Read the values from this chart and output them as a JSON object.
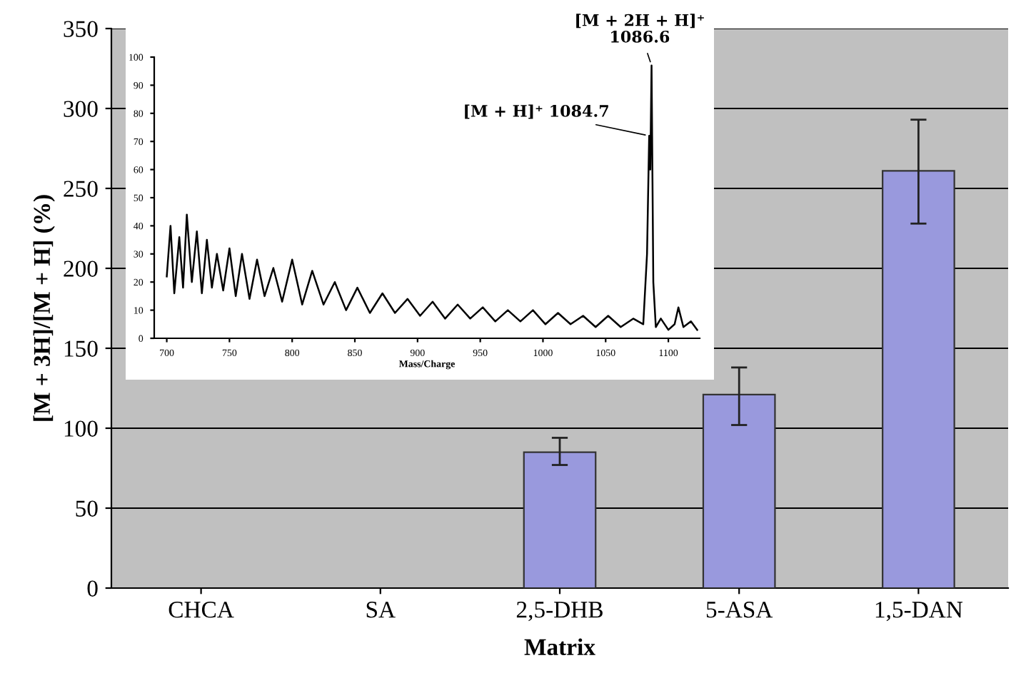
{
  "chart_data": [
    {
      "type": "bar",
      "xlabel": "Matrix",
      "ylabel": "[M + 3H]/[M + H] (%)",
      "categories": [
        "CHCA",
        "SA",
        "2,5-DHB",
        "5-ASA",
        "1,5-DAN"
      ],
      "values": [
        0,
        0,
        85,
        121,
        261
      ],
      "errors": [
        null,
        null,
        [
          77,
          94
        ],
        [
          102,
          138
        ],
        [
          228,
          293
        ]
      ],
      "color": "#9999dd",
      "ylim": [
        0,
        350
      ],
      "yticks": [
        0,
        50,
        100,
        150,
        200,
        250,
        300,
        350
      ],
      "grid": "y",
      "legend": false
    },
    {
      "type": "line",
      "xlabel": "Mass/Charge",
      "x": [
        700,
        703,
        706,
        710,
        713,
        716,
        720,
        724,
        728,
        732,
        736,
        740,
        745,
        750,
        755,
        760,
        766,
        772,
        778,
        785,
        792,
        800,
        808,
        816,
        825,
        834,
        843,
        852,
        862,
        872,
        882,
        892,
        902,
        912,
        922,
        932,
        942,
        952,
        962,
        972,
        982,
        992,
        1002,
        1012,
        1022,
        1032,
        1042,
        1052,
        1062,
        1072,
        1080,
        1083,
        1084.7,
        1085.6,
        1086.6,
        1088,
        1090,
        1094,
        1100,
        1105,
        1108,
        1112,
        1118,
        1123
      ],
      "series": [
        {
          "color": "#000000",
          "values": [
            22,
            40,
            16,
            36,
            18,
            44,
            20,
            38,
            16,
            35,
            18,
            30,
            17,
            32,
            15,
            30,
            14,
            28,
            15,
            25,
            13,
            28,
            12,
            24,
            12,
            20,
            10,
            18,
            9,
            16,
            9,
            14,
            8,
            13,
            7,
            12,
            7,
            11,
            6,
            10,
            6,
            10,
            5,
            9,
            5,
            8,
            4,
            8,
            4,
            7,
            5,
            30,
            72,
            60,
            97,
            20,
            4,
            7,
            3,
            5,
            11,
            4,
            6,
            3
          ]
        }
      ],
      "xlim": [
        690,
        1125
      ],
      "ylim": [
        0,
        100
      ],
      "xticks": [
        700,
        750,
        800,
        850,
        900,
        950,
        1000,
        1050,
        1100
      ],
      "yticks": [
        0,
        10,
        20,
        30,
        40,
        50,
        60,
        70,
        80,
        90,
        100
      ],
      "annotations": [
        {
          "text": "[M + 2H + H]⁺\n1086.6",
          "x": 1086.6,
          "y": 97
        },
        {
          "text": "[M + H]⁺ 1084.7",
          "x": 1084.7,
          "y": 72
        }
      ]
    }
  ]
}
